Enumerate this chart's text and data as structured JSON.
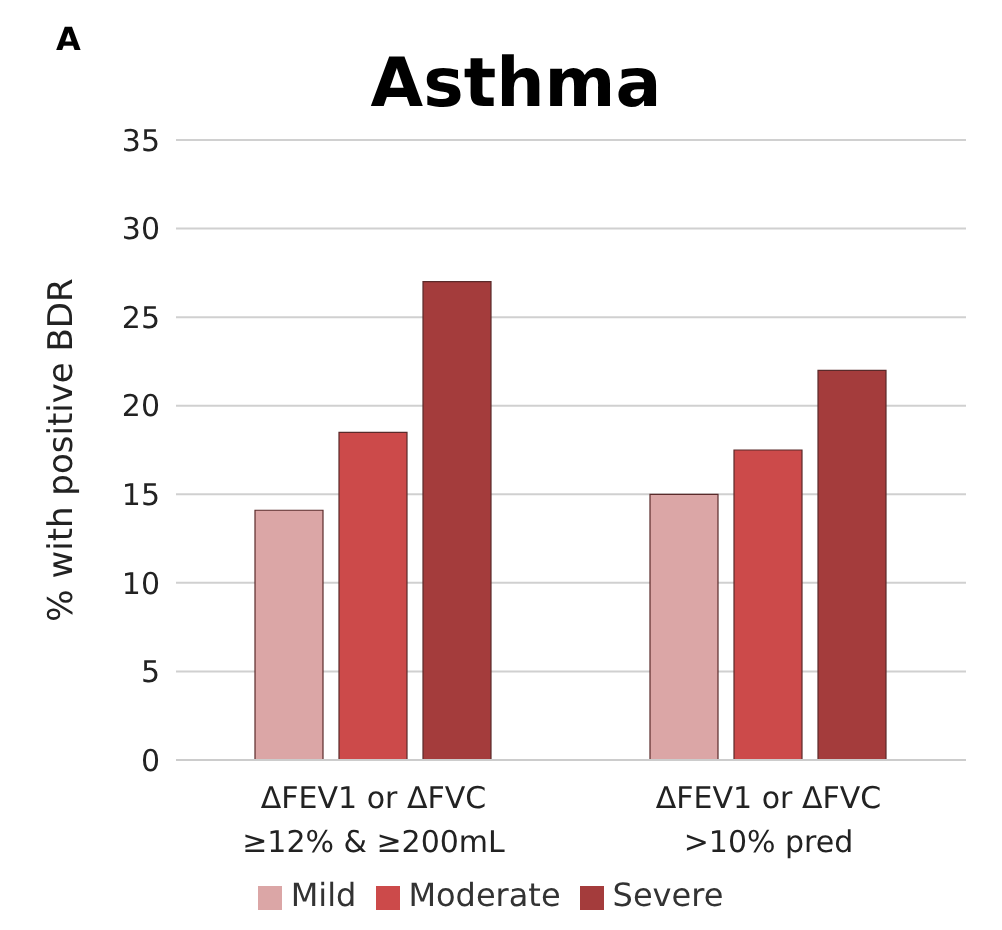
{
  "chart_data": {
    "type": "bar",
    "title": "Asthma",
    "ylabel": "% with positive BDR",
    "annotations": [
      "A"
    ],
    "categories": [
      "ΔFEV1 or ΔFVC\n≥12% & ≥200mL",
      "ΔFEV1 or ΔFVC\n>10% pred"
    ],
    "series": [
      {
        "name": "Mild",
        "color": "#dba6a6",
        "values": [
          14.1,
          15
        ]
      },
      {
        "name": "Moderate",
        "color": "#cc4a4a",
        "values": [
          18.5,
          17.5
        ]
      },
      {
        "name": "Severe",
        "color": "#a43c3c",
        "values": [
          27,
          22
        ]
      }
    ],
    "ylim": [
      0,
      35
    ],
    "yticks": [
      0,
      5,
      10,
      15,
      20,
      25,
      30,
      35
    ],
    "grid": "y",
    "legend": "bottom"
  }
}
